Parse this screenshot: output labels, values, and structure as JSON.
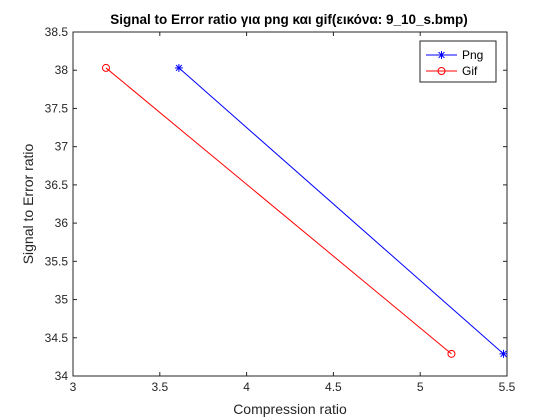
{
  "chart_data": {
    "type": "line",
    "title": "Signal to Error ratio για png και gif(εικόνα: 9_10_s.bmp)",
    "xlabel": "Compression ratio",
    "ylabel": "Signal to Error ratio",
    "xlim": [
      3,
      5.5
    ],
    "ylim": [
      34,
      38.5
    ],
    "xticks": [
      "3",
      "3.5",
      "4",
      "4.5",
      "5",
      "5.5"
    ],
    "yticks": [
      "34",
      "34.5",
      "35",
      "35.5",
      "36",
      "36.5",
      "37",
      "37.5",
      "38",
      "38.5"
    ],
    "grid": false,
    "legend_position": "top-right",
    "series": [
      {
        "name": "Png",
        "color": "#0000ff",
        "marker": "asterisk",
        "x": [
          3.61,
          5.48
        ],
        "y": [
          38.03,
          34.29
        ]
      },
      {
        "name": "Gif",
        "color": "#ff0000",
        "marker": "circle",
        "x": [
          3.19,
          5.18
        ],
        "y": [
          38.03,
          34.29
        ]
      }
    ]
  }
}
